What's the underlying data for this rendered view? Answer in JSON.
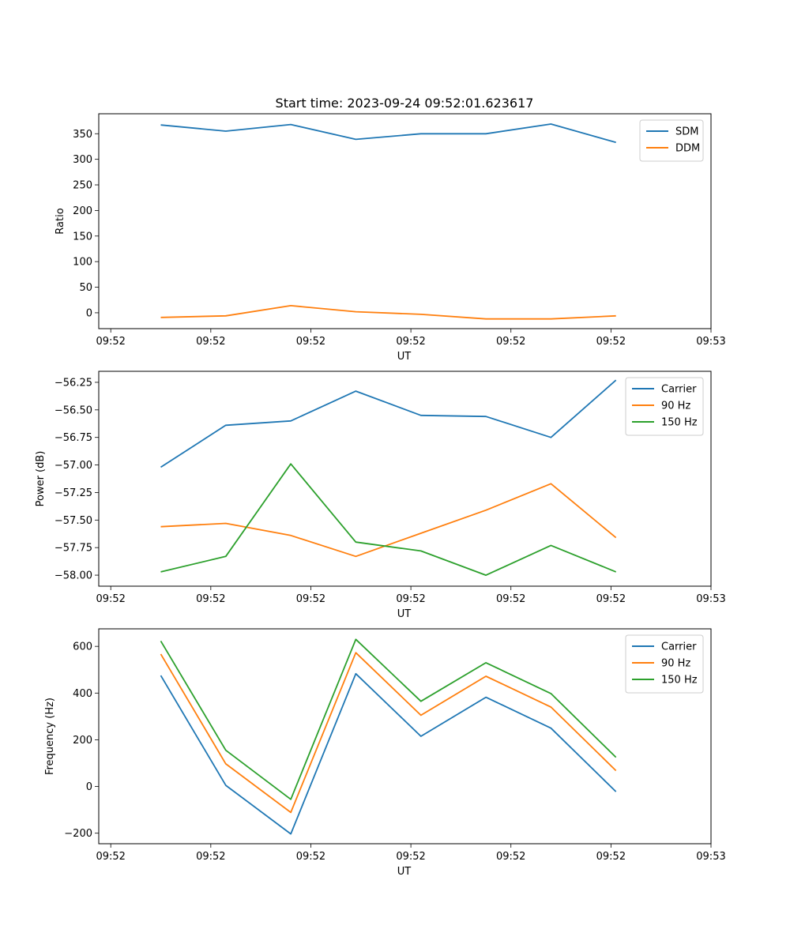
{
  "figure_title": "Start time: 2023-09-24 09:52:01.623617",
  "colors": {
    "blue": "#1f77b4",
    "orange": "#ff7f0e",
    "green": "#2ca02c"
  },
  "chart_data": [
    {
      "type": "line",
      "title": "Start time: 2023-09-24 09:52:01.623617",
      "xlabel": "UT",
      "ylabel": "Ratio",
      "xticks": [
        "09:52",
        "09:52",
        "09:52",
        "09:52",
        "09:52",
        "09:52",
        "09:53"
      ],
      "x": [
        0.5,
        1.15,
        1.8,
        2.45,
        3.1,
        3.75,
        4.4,
        5.05
      ],
      "xlim": [
        -0.12,
        6.0
      ],
      "ylim": [
        -31,
        389
      ],
      "yticks": [
        0,
        50,
        100,
        150,
        200,
        250,
        300,
        350
      ],
      "legend_loc": "upper-right",
      "series": [
        {
          "name": "SDM",
          "color": "#1f77b4",
          "values": [
            367,
            355,
            368,
            339,
            350,
            350,
            369,
            333
          ]
        },
        {
          "name": "DDM",
          "color": "#ff7f0e",
          "values": [
            -9,
            -6,
            14,
            2,
            -3,
            -12,
            -12,
            -6
          ]
        }
      ]
    },
    {
      "type": "line",
      "title": "",
      "xlabel": "UT",
      "ylabel": "Power (dB)",
      "xticks": [
        "09:52",
        "09:52",
        "09:52",
        "09:52",
        "09:52",
        "09:52",
        "09:53"
      ],
      "x": [
        0.5,
        1.15,
        1.8,
        2.45,
        3.1,
        3.75,
        4.4,
        5.05
      ],
      "xlim": [
        -0.12,
        6.0
      ],
      "ylim": [
        -58.1,
        -56.15
      ],
      "yticks": [
        -58.0,
        -57.75,
        -57.5,
        -57.25,
        -57.0,
        -56.75,
        -56.5,
        -56.25
      ],
      "ytick_labels": [
        "−58.00",
        "−57.75",
        "−57.50",
        "−57.25",
        "−57.00",
        "−56.75",
        "−56.50",
        "−56.25"
      ],
      "legend_loc": "upper-right",
      "series": [
        {
          "name": "Carrier",
          "color": "#1f77b4",
          "values": [
            -57.02,
            -56.64,
            -56.6,
            -56.33,
            -56.55,
            -56.56,
            -56.75,
            -56.23
          ]
        },
        {
          "name": "90 Hz",
          "color": "#ff7f0e",
          "values": [
            -57.56,
            -57.53,
            -57.64,
            -57.83,
            -57.62,
            -57.41,
            -57.17,
            -57.66
          ]
        },
        {
          "name": "150 Hz",
          "color": "#2ca02c",
          "values": [
            -57.97,
            -57.83,
            -56.99,
            -57.7,
            -57.78,
            -58.0,
            -57.73,
            -57.97
          ]
        }
      ]
    },
    {
      "type": "line",
      "title": "",
      "xlabel": "UT",
      "ylabel": "Frequency (Hz)",
      "xticks": [
        "09:52",
        "09:52",
        "09:52",
        "09:52",
        "09:52",
        "09:52",
        "09:53"
      ],
      "x": [
        0.5,
        1.15,
        1.8,
        2.45,
        3.1,
        3.75,
        4.4,
        5.05
      ],
      "xlim": [
        -0.12,
        6.0
      ],
      "ylim": [
        -245,
        675
      ],
      "yticks": [
        -200,
        0,
        200,
        400,
        600
      ],
      "ytick_labels": [
        "−200",
        "0",
        "200",
        "400",
        "600"
      ],
      "legend_loc": "upper-right",
      "series": [
        {
          "name": "Carrier",
          "color": "#1f77b4",
          "values": [
            475,
            5,
            -203,
            483,
            215,
            382,
            250,
            -22
          ]
        },
        {
          "name": "90 Hz",
          "color": "#ff7f0e",
          "values": [
            567,
            97,
            -111,
            573,
            305,
            472,
            340,
            68
          ]
        },
        {
          "name": "150 Hz",
          "color": "#2ca02c",
          "values": [
            623,
            155,
            -55,
            630,
            365,
            530,
            398,
            125
          ]
        }
      ]
    }
  ]
}
